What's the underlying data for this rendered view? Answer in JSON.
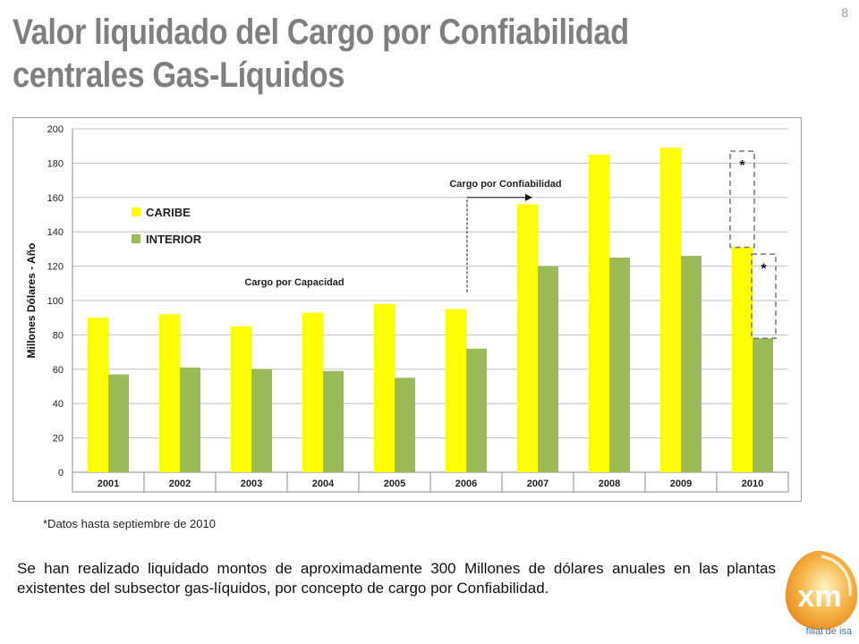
{
  "slide": {
    "title": "Valor liquidado del Cargo por Confiabilidad centrales Gas-Líquidos",
    "page_number": "8",
    "footnote": "*Datos hasta septiembre de 2010",
    "summary": "Se han realizado liquidado montos de aproximadamente 300 Millones de dólares anuales en las plantas existentes del subsector gas-líquidos, por concepto de cargo por Confiabilidad.",
    "logo_text": "xm",
    "logo_subtext": "filial de isa"
  },
  "chart_data": {
    "type": "bar",
    "title": "",
    "xlabel": "",
    "ylabel": "Millones Dólares - Año",
    "ylim": [
      0,
      200
    ],
    "yticks": [
      0,
      20,
      40,
      60,
      80,
      100,
      120,
      140,
      160,
      180,
      200
    ],
    "grid": true,
    "legend_position": "top-left",
    "categories": [
      "2001",
      "2002",
      "2003",
      "2004",
      "2005",
      "2006",
      "2007",
      "2008",
      "2009",
      "2010"
    ],
    "series": [
      {
        "name": "CARIBE",
        "color": "#ffff00",
        "values": [
          90,
          92,
          85,
          93,
          98,
          95,
          156,
          185,
          189,
          131
        ]
      },
      {
        "name": "INTERIOR",
        "color": "#9bbb59",
        "values": [
          57,
          61,
          60,
          59,
          55,
          72,
          120,
          125,
          126,
          78
        ]
      }
    ],
    "annotations": {
      "capacity_label": "Cargo por Capacidad",
      "reliability_label": "Cargo por Confiabilidad",
      "asterisk": "*"
    }
  }
}
